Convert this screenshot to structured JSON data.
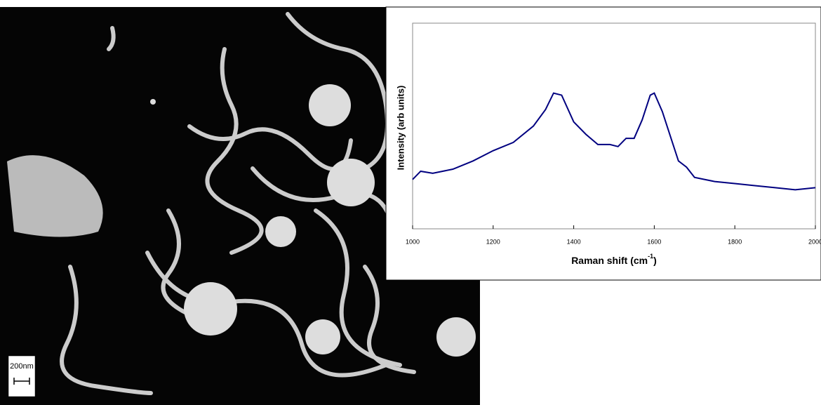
{
  "image": {
    "scale_bar_label": "200nm"
  },
  "chart_data": {
    "type": "line",
    "x_label": "Raman shift (cm",
    "x_label_sup": "-1",
    "x_label_end": ")",
    "y_label": "Intensity (arb units)",
    "x": [
      1000,
      1020,
      1050,
      1100,
      1150,
      1200,
      1250,
      1300,
      1330,
      1350,
      1370,
      1400,
      1430,
      1460,
      1490,
      1510,
      1530,
      1550,
      1570,
      1590,
      1600,
      1620,
      1640,
      1660,
      1680,
      1700,
      1750,
      1800,
      1850,
      1900,
      1950,
      2000
    ],
    "series": [
      {
        "color": "#000080",
        "values": [
          24,
          28,
          27,
          29,
          33,
          38,
          42,
          50,
          58,
          66,
          65,
          52,
          46,
          41,
          41,
          40,
          44,
          44,
          53,
          65,
          66,
          57,
          45,
          33,
          30,
          25,
          23,
          22,
          21,
          20,
          19,
          20
        ]
      }
    ],
    "xlim": [
      1000,
      2000
    ],
    "xticks": [
      1000,
      1200,
      1400,
      1600,
      1800,
      2000
    ],
    "ylim": [
      0,
      100
    ]
  }
}
